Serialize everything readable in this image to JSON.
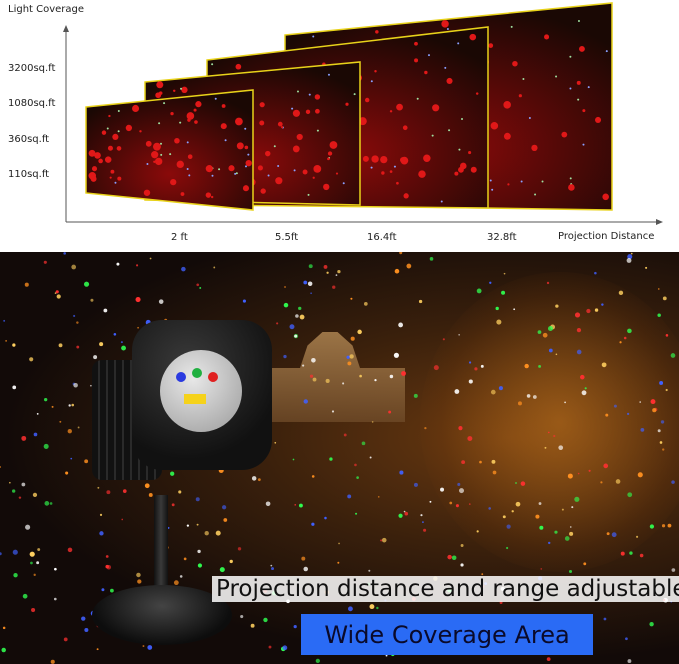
{
  "diagram": {
    "y_axis_label": "Light Coverage",
    "x_axis_label": "Projection Distance",
    "coverage_levels": [
      "3200sq.ft",
      "1080sq.ft",
      "360sq.ft",
      "110sq.ft"
    ],
    "distances": [
      "2 ft",
      "5.5ft",
      "16.4ft",
      "32.8ft"
    ],
    "frame_border_color": "#e8d21a"
  },
  "photo": {
    "caption": "Projection distance and range adjustable",
    "badge": "Wide Coverage Area",
    "badge_color": "#2a6bf5"
  }
}
